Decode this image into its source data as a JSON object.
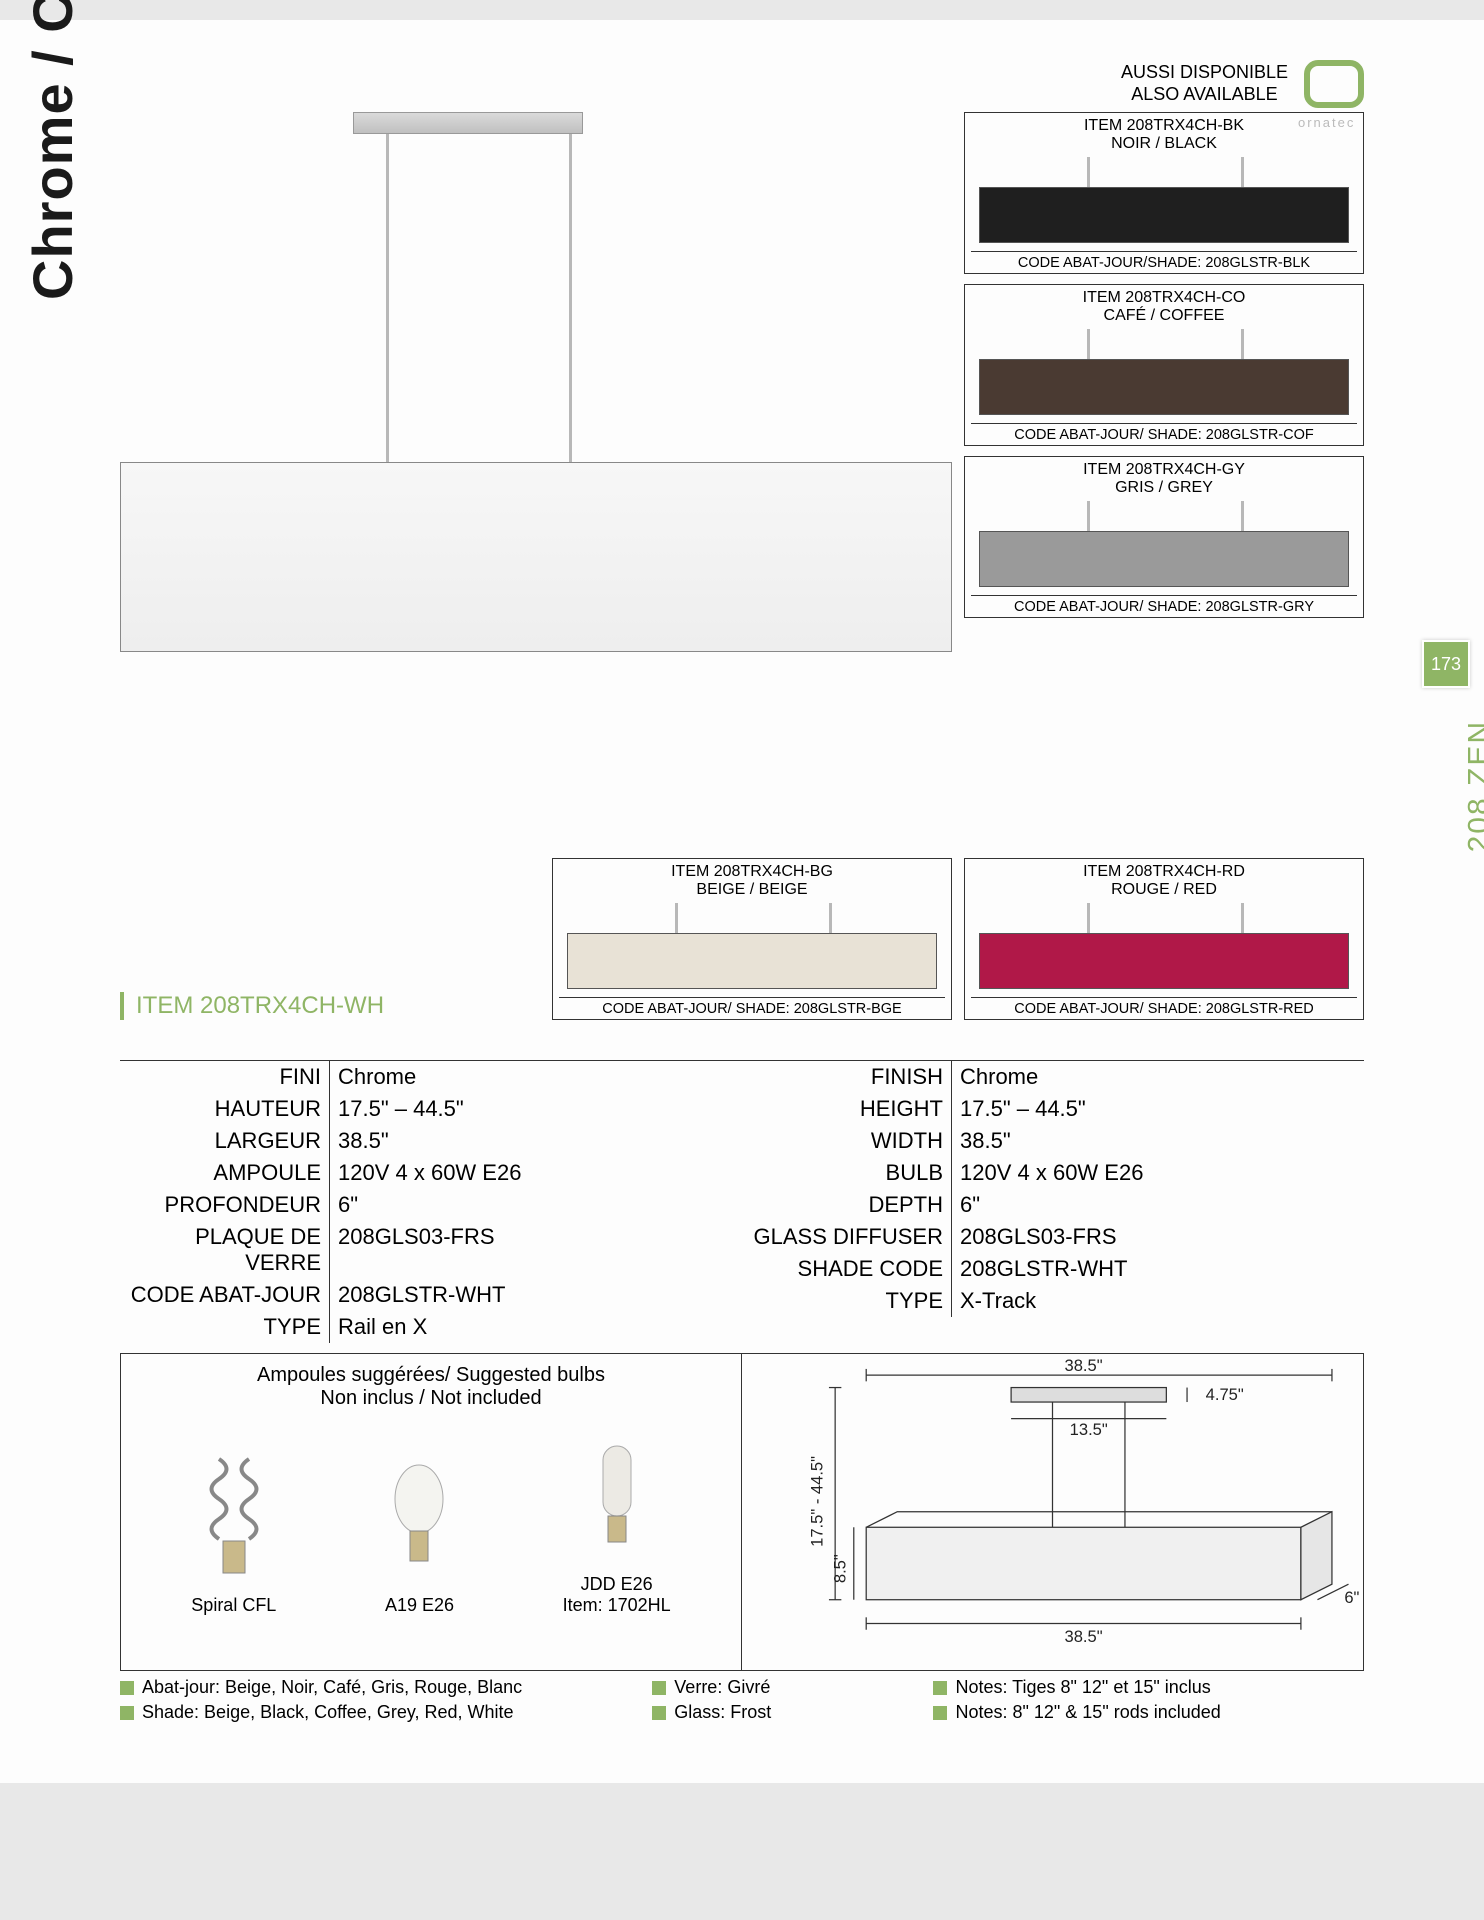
{
  "page": {
    "verticalTitle": "Chrome / Chrome",
    "sideTabNumber": "173",
    "sideTabLabel": "208 ZEN",
    "available_fr": "AUSSI DISPONIBLE",
    "available_en": "ALSO AVAILABLE",
    "logoText": "ornatec"
  },
  "hero": {
    "itemLabel": "ITEM 208TRX4CH-WH",
    "shadeColor": "#f1f1f1"
  },
  "variants": [
    {
      "item": "ITEM 208TRX4CH-BK",
      "name": "NOIR / BLACK",
      "color": "#1f1f1f",
      "code": "CODE ABAT-JOUR/SHADE: 208GLSTR-BLK"
    },
    {
      "item": "ITEM 208TRX4CH-CO",
      "name": "CAFÉ / COFFEE",
      "color": "#4a3a32",
      "code": "CODE ABAT-JOUR/ SHADE: 208GLSTR-COF"
    },
    {
      "item": "ITEM 208TRX4CH-GY",
      "name": "GRIS / GREY",
      "color": "#9a9a9a",
      "code": "CODE ABAT-JOUR/ SHADE: 208GLSTR-GRY"
    },
    {
      "item": "ITEM 208TRX4CH-BG",
      "name": "BEIGE / BEIGE",
      "color": "#e8e2d6",
      "code": "CODE ABAT-JOUR/ SHADE: 208GLSTR-BGE"
    },
    {
      "item": "ITEM 208TRX4CH-RD",
      "name": "ROUGE / RED",
      "color": "#b01848",
      "code": "CODE ABAT-JOUR/ SHADE: 208GLSTR-RED"
    }
  ],
  "specs_fr": [
    {
      "label": "FINI",
      "value": "Chrome"
    },
    {
      "label": "HAUTEUR",
      "value": "17.5\" – 44.5\""
    },
    {
      "label": "LARGEUR",
      "value": "38.5\""
    },
    {
      "label": "AMPOULE",
      "value": "120V 4 x 60W E26"
    },
    {
      "label": "PROFONDEUR",
      "value": "6\""
    },
    {
      "label": "PLAQUE DE VERRE",
      "value": "208GLS03-FRS"
    },
    {
      "label": "CODE ABAT-JOUR",
      "value": "208GLSTR-WHT"
    },
    {
      "label": "TYPE",
      "value": "Rail en X"
    }
  ],
  "specs_en": [
    {
      "label": "FINISH",
      "value": "Chrome"
    },
    {
      "label": "HEIGHT",
      "value": "17.5\" – 44.5\""
    },
    {
      "label": "WIDTH",
      "value": "38.5\""
    },
    {
      "label": "BULB",
      "value": "120V 4 x 60W E26"
    },
    {
      "label": "DEPTH",
      "value": "6\""
    },
    {
      "label": "GLASS DIFFUSER",
      "value": "208GLS03-FRS"
    },
    {
      "label": "SHADE CODE",
      "value": "208GLSTR-WHT"
    },
    {
      "label": "TYPE",
      "value": "X-Track"
    }
  ],
  "bulbs": {
    "header_fr": "Ampoules suggérées/ Suggested bulbs",
    "header_en": "Non inclus / Not included",
    "items": [
      {
        "name": "Spiral CFL",
        "sub": ""
      },
      {
        "name": "A19 E26",
        "sub": ""
      },
      {
        "name": "JDD E26",
        "sub": "Item: 1702HL"
      }
    ]
  },
  "dimensions": {
    "width_top": "38.5\"",
    "canopy_w": "13.5\"",
    "canopy_h": "4.75\"",
    "total_h": "17.5\" - 44.5\"",
    "shade_h": "8.5\"",
    "width_bottom": "38.5\"",
    "depth": "6\""
  },
  "footnotes": {
    "abat": "Abat-jour: Beige, Noir, Café, Gris, Rouge, Blanc",
    "shade": "Shade: Beige, Black, Coffee, Grey, Red, White",
    "verre": "Verre: Givré",
    "glass": "Glass: Frost",
    "notes_fr": "Notes: Tiges 8\" 12\" et 15\" inclus",
    "notes_en": "Notes: 8\" 12\" & 15\" rods included"
  },
  "colors": {
    "accent": "#8fb565",
    "ink": "#1a1a1a"
  }
}
